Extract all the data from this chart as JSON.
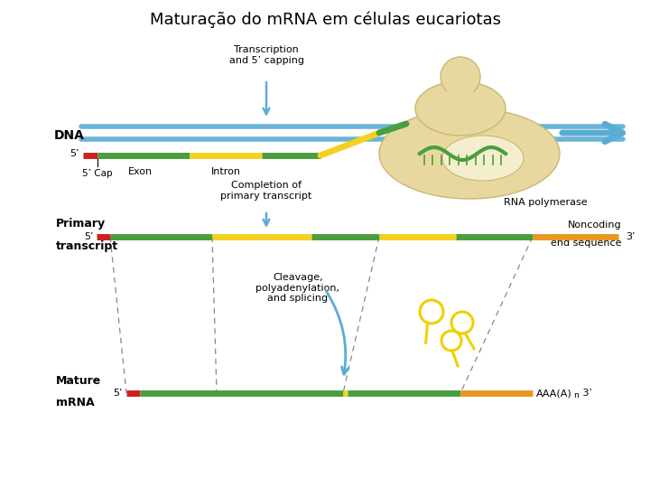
{
  "title": "Maturação do mRNA em células eucariotas",
  "title_fontsize": 13,
  "bg_color": "#ffffff",
  "colors": {
    "blue_line": "#6ab4d8",
    "green": "#4a9e3f",
    "yellow": "#f5d020",
    "red": "#cc2222",
    "orange": "#e89820",
    "arrow_blue": "#5bacd4",
    "rna_pol_body": "#e8d8a0",
    "rna_pol_edge": "#c8b870",
    "lollipop_yellow": "#f0d000",
    "dashed": "#888888"
  },
  "labels": {
    "dna": "DNA",
    "five_prime_top": "5’",
    "exon": "Exon",
    "intron": "Intron",
    "five_cap": "5’ Cap",
    "rna_pol": "RNA polymerase",
    "transcription": "Transcription\nand 5’ capping",
    "completion": "Completion of\nprimary transcript",
    "primary_label1": "Primary",
    "primary_label2": "transcript",
    "five_prime_pt": "5’",
    "three_prime_pt": "3’",
    "noncoding1": "Noncoding",
    "noncoding2": "end sequence",
    "cleavage": "Cleavage,\npolyadenylation,\nand splicing",
    "mature_label1": "Mature",
    "mature_label2": "mRNA",
    "five_prime_mm": "5’",
    "aaa": "AAA(A)"
  }
}
